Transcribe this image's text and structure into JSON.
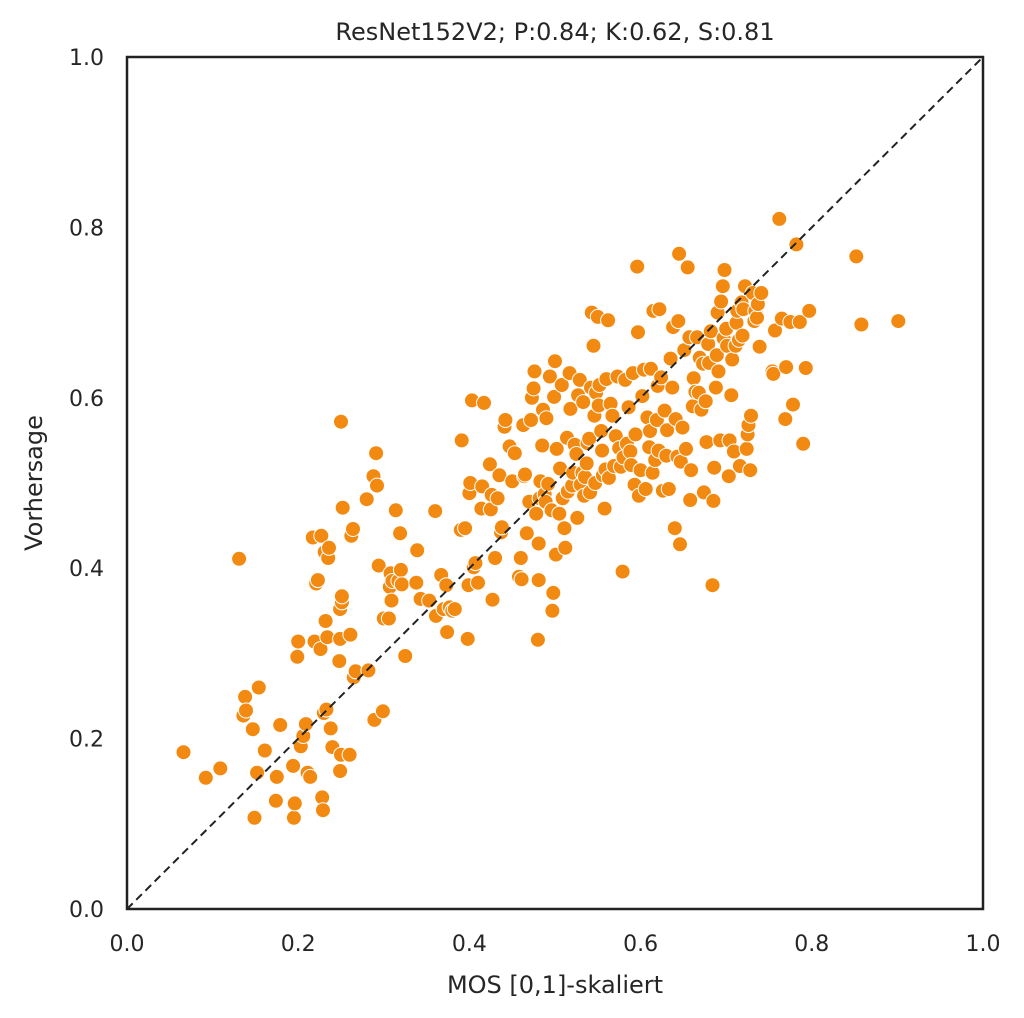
{
  "chart_data": {
    "type": "scatter",
    "title": "ResNet152V2; P:0.84; K:0.62, S:0.81",
    "xlabel": "MOS [0,1]-skaliert",
    "ylabel": "Vorhersage",
    "xlim": [
      0.0,
      1.0
    ],
    "ylim": [
      0.0,
      1.0
    ],
    "x_ticks": [
      "0.0",
      "0.2",
      "0.4",
      "0.6",
      "0.8",
      "1.0"
    ],
    "y_ticks": [
      "0.0",
      "0.2",
      "0.4",
      "0.6",
      "0.8",
      "1.0"
    ],
    "grid": false,
    "reference_line": {
      "from": [
        0.0,
        0.0
      ],
      "to": [
        1.0,
        1.0
      ],
      "style": "dashed",
      "color": "#222222"
    },
    "marker_color": "#f28a12",
    "marker_edge": "#ffffff",
    "points": [
      [
        0.066,
        0.184
      ],
      [
        0.092,
        0.154
      ],
      [
        0.109,
        0.165
      ],
      [
        0.131,
        0.411
      ],
      [
        0.136,
        0.227
      ],
      [
        0.138,
        0.249
      ],
      [
        0.139,
        0.233
      ],
      [
        0.147,
        0.211
      ],
      [
        0.149,
        0.107
      ],
      [
        0.152,
        0.16
      ],
      [
        0.154,
        0.26
      ],
      [
        0.161,
        0.186
      ],
      [
        0.174,
        0.127
      ],
      [
        0.175,
        0.155
      ],
      [
        0.179,
        0.216
      ],
      [
        0.194,
        0.168
      ],
      [
        0.195,
        0.107
      ],
      [
        0.196,
        0.124
      ],
      [
        0.199,
        0.296
      ],
      [
        0.2,
        0.314
      ],
      [
        0.203,
        0.191
      ],
      [
        0.206,
        0.203
      ],
      [
        0.209,
        0.217
      ],
      [
        0.211,
        0.16
      ],
      [
        0.214,
        0.155
      ],
      [
        0.217,
        0.436
      ],
      [
        0.219,
        0.314
      ],
      [
        0.221,
        0.382
      ],
      [
        0.223,
        0.386
      ],
      [
        0.226,
        0.305
      ],
      [
        0.227,
        0.438
      ],
      [
        0.228,
        0.131
      ],
      [
        0.229,
        0.116
      ],
      [
        0.23,
        0.23
      ],
      [
        0.231,
        0.419
      ],
      [
        0.232,
        0.338
      ],
      [
        0.233,
        0.234
      ],
      [
        0.234,
        0.319
      ],
      [
        0.235,
        0.412
      ],
      [
        0.236,
        0.424
      ],
      [
        0.238,
        0.212
      ],
      [
        0.24,
        0.19
      ],
      [
        0.248,
        0.291
      ],
      [
        0.249,
        0.317
      ],
      [
        0.249,
        0.352
      ],
      [
        0.249,
        0.162
      ],
      [
        0.25,
        0.572
      ],
      [
        0.25,
        0.181
      ],
      [
        0.251,
        0.36
      ],
      [
        0.251,
        0.367
      ],
      [
        0.252,
        0.471
      ],
      [
        0.26,
        0.181
      ],
      [
        0.261,
        0.322
      ],
      [
        0.262,
        0.438
      ],
      [
        0.264,
        0.446
      ],
      [
        0.265,
        0.272
      ],
      [
        0.267,
        0.279
      ],
      [
        0.28,
        0.481
      ],
      [
        0.282,
        0.28
      ],
      [
        0.288,
        0.508
      ],
      [
        0.289,
        0.222
      ],
      [
        0.291,
        0.535
      ],
      [
        0.292,
        0.497
      ],
      [
        0.294,
        0.403
      ],
      [
        0.299,
        0.232
      ],
      [
        0.3,
        0.341
      ],
      [
        0.306,
        0.341
      ],
      [
        0.307,
        0.378
      ],
      [
        0.308,
        0.394
      ],
      [
        0.309,
        0.362
      ],
      [
        0.31,
        0.385
      ],
      [
        0.314,
        0.468
      ],
      [
        0.317,
        0.385
      ],
      [
        0.319,
        0.441
      ],
      [
        0.32,
        0.398
      ],
      [
        0.321,
        0.381
      ],
      [
        0.325,
        0.297
      ],
      [
        0.338,
        0.383
      ],
      [
        0.339,
        0.421
      ],
      [
        0.343,
        0.364
      ],
      [
        0.353,
        0.362
      ],
      [
        0.36,
        0.467
      ],
      [
        0.361,
        0.344
      ],
      [
        0.367,
        0.392
      ],
      [
        0.37,
        0.352
      ],
      [
        0.373,
        0.38
      ],
      [
        0.374,
        0.325
      ],
      [
        0.377,
        0.354
      ],
      [
        0.38,
        0.35
      ],
      [
        0.383,
        0.352
      ],
      [
        0.39,
        0.445
      ],
      [
        0.391,
        0.55
      ],
      [
        0.395,
        0.447
      ],
      [
        0.398,
        0.317
      ],
      [
        0.399,
        0.38
      ],
      [
        0.4,
        0.488
      ],
      [
        0.401,
        0.5
      ],
      [
        0.403,
        0.597
      ],
      [
        0.405,
        0.401
      ],
      [
        0.407,
        0.406
      ],
      [
        0.41,
        0.383
      ],
      [
        0.414,
        0.47
      ],
      [
        0.415,
        0.496
      ],
      [
        0.417,
        0.594
      ],
      [
        0.424,
        0.522
      ],
      [
        0.425,
        0.469
      ],
      [
        0.426,
        0.486
      ],
      [
        0.427,
        0.363
      ],
      [
        0.43,
        0.412
      ],
      [
        0.433,
        0.482
      ],
      [
        0.435,
        0.509
      ],
      [
        0.437,
        0.442
      ],
      [
        0.438,
        0.448
      ],
      [
        0.441,
        0.566
      ],
      [
        0.442,
        0.574
      ],
      [
        0.447,
        0.543
      ],
      [
        0.45,
        0.502
      ],
      [
        0.453,
        0.535
      ],
      [
        0.458,
        0.39
      ],
      [
        0.46,
        0.412
      ],
      [
        0.461,
        0.387
      ],
      [
        0.463,
        0.568
      ],
      [
        0.464,
        0.508
      ],
      [
        0.465,
        0.51
      ],
      [
        0.467,
        0.441
      ],
      [
        0.47,
        0.478
      ],
      [
        0.472,
        0.574
      ],
      [
        0.473,
        0.6
      ],
      [
        0.475,
        0.611
      ],
      [
        0.476,
        0.631
      ],
      [
        0.478,
        0.464
      ],
      [
        0.48,
        0.316
      ],
      [
        0.481,
        0.386
      ],
      [
        0.481,
        0.429
      ],
      [
        0.482,
        0.482
      ],
      [
        0.483,
        0.502
      ],
      [
        0.485,
        0.544
      ],
      [
        0.486,
        0.586
      ],
      [
        0.488,
        0.487
      ],
      [
        0.489,
        0.478
      ],
      [
        0.49,
        0.576
      ],
      [
        0.492,
        0.499
      ],
      [
        0.494,
        0.625
      ],
      [
        0.496,
        0.468
      ],
      [
        0.497,
        0.35
      ],
      [
        0.498,
        0.371
      ],
      [
        0.499,
        0.601
      ],
      [
        0.5,
        0.643
      ],
      [
        0.501,
        0.416
      ],
      [
        0.502,
        0.54
      ],
      [
        0.505,
        0.464
      ],
      [
        0.506,
        0.517
      ],
      [
        0.508,
        0.615
      ],
      [
        0.509,
        0.482
      ],
      [
        0.511,
        0.447
      ],
      [
        0.512,
        0.424
      ],
      [
        0.514,
        0.553
      ],
      [
        0.515,
        0.49
      ],
      [
        0.517,
        0.629
      ],
      [
        0.518,
        0.587
      ],
      [
        0.52,
        0.497
      ],
      [
        0.521,
        0.512
      ],
      [
        0.523,
        0.545
      ],
      [
        0.525,
        0.534
      ],
      [
        0.526,
        0.459
      ],
      [
        0.527,
        0.603
      ],
      [
        0.529,
        0.621
      ],
      [
        0.53,
        0.498
      ],
      [
        0.532,
        0.512
      ],
      [
        0.533,
        0.595
      ],
      [
        0.534,
        0.485
      ],
      [
        0.535,
        0.507
      ],
      [
        0.537,
        0.523
      ],
      [
        0.538,
        0.547
      ],
      [
        0.54,
        0.552
      ],
      [
        0.541,
        0.489
      ],
      [
        0.542,
        0.612
      ],
      [
        0.543,
        0.7
      ],
      [
        0.545,
        0.661
      ],
      [
        0.546,
        0.579
      ],
      [
        0.547,
        0.5
      ],
      [
        0.548,
        0.606
      ],
      [
        0.55,
        0.695
      ],
      [
        0.551,
        0.591
      ],
      [
        0.552,
        0.615
      ],
      [
        0.554,
        0.561
      ],
      [
        0.555,
        0.538
      ],
      [
        0.556,
        0.509
      ],
      [
        0.558,
        0.47
      ],
      [
        0.559,
        0.516
      ],
      [
        0.56,
        0.622
      ],
      [
        0.562,
        0.691
      ],
      [
        0.563,
        0.506
      ],
      [
        0.565,
        0.593
      ],
      [
        0.567,
        0.579
      ],
      [
        0.569,
        0.52
      ],
      [
        0.571,
        0.555
      ],
      [
        0.573,
        0.625
      ],
      [
        0.575,
        0.541
      ],
      [
        0.577,
        0.519
      ],
      [
        0.579,
        0.396
      ],
      [
        0.58,
        0.53
      ],
      [
        0.582,
        0.621
      ],
      [
        0.584,
        0.546
      ],
      [
        0.586,
        0.589
      ],
      [
        0.588,
        0.537
      ],
      [
        0.589,
        0.521
      ],
      [
        0.591,
        0.629
      ],
      [
        0.593,
        0.498
      ],
      [
        0.594,
        0.557
      ],
      [
        0.596,
        0.754
      ],
      [
        0.597,
        0.677
      ],
      [
        0.598,
        0.485
      ],
      [
        0.6,
        0.515
      ],
      [
        0.602,
        0.602
      ],
      [
        0.604,
        0.633
      ],
      [
        0.606,
        0.493
      ],
      [
        0.608,
        0.577
      ],
      [
        0.61,
        0.542
      ],
      [
        0.611,
        0.561
      ],
      [
        0.612,
        0.634
      ],
      [
        0.614,
        0.512
      ],
      [
        0.615,
        0.702
      ],
      [
        0.617,
        0.527
      ],
      [
        0.619,
        0.574
      ],
      [
        0.62,
        0.614
      ],
      [
        0.621,
        0.538
      ],
      [
        0.622,
        0.704
      ],
      [
        0.624,
        0.624
      ],
      [
        0.626,
        0.491
      ],
      [
        0.628,
        0.585
      ],
      [
        0.63,
        0.532
      ],
      [
        0.631,
        0.562
      ],
      [
        0.633,
        0.493
      ],
      [
        0.635,
        0.646
      ],
      [
        0.637,
        0.612
      ],
      [
        0.638,
        0.683
      ],
      [
        0.64,
        0.447
      ],
      [
        0.641,
        0.575
      ],
      [
        0.643,
        0.531
      ],
      [
        0.644,
        0.69
      ],
      [
        0.645,
        0.769
      ],
      [
        0.646,
        0.428
      ],
      [
        0.647,
        0.525
      ],
      [
        0.649,
        0.565
      ],
      [
        0.651,
        0.656
      ],
      [
        0.653,
        0.54
      ],
      [
        0.655,
        0.753
      ],
      [
        0.657,
        0.671
      ],
      [
        0.658,
        0.48
      ],
      [
        0.659,
        0.515
      ],
      [
        0.661,
        0.59
      ],
      [
        0.662,
        0.623
      ],
      [
        0.664,
        0.607
      ],
      [
        0.666,
        0.671
      ],
      [
        0.668,
        0.606
      ],
      [
        0.669,
        0.647
      ],
      [
        0.671,
        0.586
      ],
      [
        0.673,
        0.64
      ],
      [
        0.674,
        0.489
      ],
      [
        0.676,
        0.596
      ],
      [
        0.677,
        0.548
      ],
      [
        0.679,
        0.663
      ],
      [
        0.68,
        0.641
      ],
      [
        0.682,
        0.678
      ],
      [
        0.684,
        0.38
      ],
      [
        0.685,
        0.479
      ],
      [
        0.686,
        0.518
      ],
      [
        0.688,
        0.612
      ],
      [
        0.689,
        0.65
      ],
      [
        0.69,
        0.7
      ],
      [
        0.691,
        0.631
      ],
      [
        0.693,
        0.55
      ],
      [
        0.694,
        0.713
      ],
      [
        0.696,
        0.731
      ],
      [
        0.697,
        0.67
      ],
      [
        0.698,
        0.75
      ],
      [
        0.7,
        0.681
      ],
      [
        0.701,
        0.661
      ],
      [
        0.703,
        0.508
      ],
      [
        0.704,
        0.55
      ],
      [
        0.706,
        0.603
      ],
      [
        0.707,
        0.645
      ],
      [
        0.709,
        0.537
      ],
      [
        0.711,
        0.661
      ],
      [
        0.712,
        0.688
      ],
      [
        0.713,
        0.702
      ],
      [
        0.715,
        0.668
      ],
      [
        0.716,
        0.52
      ],
      [
        0.718,
        0.712
      ],
      [
        0.719,
        0.673
      ],
      [
        0.72,
        0.704
      ],
      [
        0.722,
        0.731
      ],
      [
        0.724,
        0.54
      ],
      [
        0.725,
        0.557
      ],
      [
        0.726,
        0.568
      ],
      [
        0.728,
        0.515
      ],
      [
        0.729,
        0.579
      ],
      [
        0.731,
        0.723
      ],
      [
        0.733,
        0.69
      ],
      [
        0.734,
        0.702
      ],
      [
        0.736,
        0.694
      ],
      [
        0.737,
        0.71
      ],
      [
        0.739,
        0.66
      ],
      [
        0.741,
        0.723
      ],
      [
        0.754,
        0.631
      ],
      [
        0.755,
        0.628
      ],
      [
        0.757,
        0.679
      ],
      [
        0.762,
        0.81
      ],
      [
        0.765,
        0.693
      ],
      [
        0.769,
        0.575
      ],
      [
        0.77,
        0.636
      ],
      [
        0.775,
        0.689
      ],
      [
        0.778,
        0.592
      ],
      [
        0.782,
        0.78
      ],
      [
        0.786,
        0.689
      ],
      [
        0.79,
        0.546
      ],
      [
        0.793,
        0.635
      ],
      [
        0.797,
        0.702
      ],
      [
        0.852,
        0.766
      ],
      [
        0.858,
        0.686
      ],
      [
        0.901,
        0.69
      ]
    ]
  }
}
